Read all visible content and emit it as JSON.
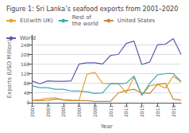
{
  "chart_data": {
    "type": "line",
    "title": "Figure 1: Sri Lanka’s seafood exports from 2001–2020",
    "x_label": "Year",
    "y_label": "Exports (USD Million)",
    "x": [
      2001,
      2002,
      2003,
      2004,
      2005,
      2006,
      2007,
      2008,
      2009,
      2010,
      2011,
      2012,
      2013,
      2014,
      2015,
      2016,
      2017,
      2018,
      2019,
      2020
    ],
    "series": [
      {
        "name": "EU(with UK)",
        "color": "#E8A030",
        "values": [
          10,
          12,
          18,
          20,
          10,
          8,
          10,
          118,
          125,
          80,
          78,
          80,
          40,
          105,
          30,
          70,
          75,
          60,
          110,
          85
        ]
      },
      {
        "name": "Rest of\nthe world",
        "color": "#3AACB8",
        "values": [
          70,
          62,
          62,
          55,
          55,
          48,
          48,
          45,
          38,
          40,
          78,
          78,
          80,
          110,
          30,
          80,
          115,
          120,
          120,
          88
        ]
      },
      {
        "name": "United States",
        "color": "#C8883A",
        "values": [
          10,
          8,
          10,
          15,
          12,
          10,
          8,
          8,
          5,
          5,
          5,
          40,
          50,
          55,
          40,
          38,
          75,
          80,
          15,
          10
        ]
      },
      {
        "name": "World",
        "color": "#5A5AAA",
        "values": [
          90,
          78,
          90,
          88,
          88,
          90,
          160,
          165,
          165,
          160,
          195,
          200,
          245,
          255,
          158,
          168,
          240,
          242,
          265,
          200
        ]
      }
    ],
    "xlim": [
      2001,
      2020
    ],
    "xticks": [
      2001,
      2003,
      2005,
      2007,
      2009,
      2011,
      2013,
      2015,
      2017,
      2019
    ],
    "ylim": [
      0,
      280
    ],
    "yticks": [
      0,
      40,
      80,
      120,
      160,
      200,
      240
    ],
    "grid": true,
    "legend": "upper left"
  }
}
